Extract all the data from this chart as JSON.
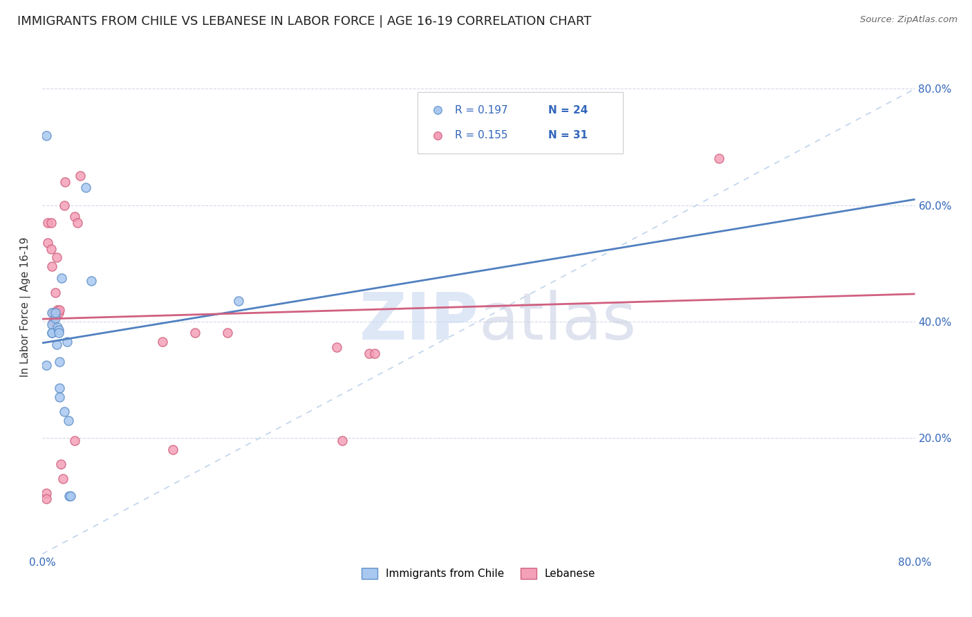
{
  "title": "IMMIGRANTS FROM CHILE VS LEBANESE IN LABOR FORCE | AGE 16-19 CORRELATION CHART",
  "source": "Source: ZipAtlas.com",
  "ylabel": "In Labor Force | Age 16-19",
  "xlim": [
    0.0,
    0.8
  ],
  "ylim": [
    0.0,
    0.85
  ],
  "xtick_labels": [
    "0.0%",
    "",
    "",
    "",
    "80.0%"
  ],
  "xtick_vals": [
    0.0,
    0.2,
    0.4,
    0.6,
    0.8
  ],
  "ytick_vals": [
    0.2,
    0.4,
    0.6,
    0.8
  ],
  "right_ytick_labels": [
    "20.0%",
    "40.0%",
    "60.0%",
    "80.0%"
  ],
  "chile_color": "#A8C8F0",
  "lebanese_color": "#F4A0B8",
  "chile_edge_color": "#6090C8",
  "lebanese_edge_color": "#D06080",
  "trend_chile_color": "#5080C0",
  "trend_lebanese_color": "#D06080",
  "ref_line_color": "#B0C8E8",
  "legend_r_chile": "R = 0.197",
  "legend_n_chile": "N = 24",
  "legend_r_lebanese": "R = 0.155",
  "legend_n_lebanese": "N = 31",
  "title_fontsize": 13,
  "axis_label_fontsize": 11,
  "tick_fontsize": 11,
  "marker_size": 90,
  "chile_x": [
    0.004,
    0.009,
    0.009,
    0.009,
    0.009,
    0.012,
    0.012,
    0.013,
    0.014,
    0.015,
    0.015,
    0.016,
    0.016,
    0.016,
    0.018,
    0.02,
    0.023,
    0.024,
    0.025,
    0.026,
    0.04,
    0.045,
    0.18,
    0.004
  ],
  "chile_y": [
    0.325,
    0.415,
    0.395,
    0.38,
    0.38,
    0.405,
    0.415,
    0.36,
    0.39,
    0.385,
    0.38,
    0.285,
    0.27,
    0.33,
    0.475,
    0.245,
    0.365,
    0.23,
    0.1,
    0.1,
    0.63,
    0.47,
    0.435,
    0.72
  ],
  "lebanese_x": [
    0.004,
    0.004,
    0.005,
    0.005,
    0.008,
    0.008,
    0.009,
    0.01,
    0.01,
    0.012,
    0.013,
    0.014,
    0.015,
    0.016,
    0.017,
    0.019,
    0.02,
    0.021,
    0.03,
    0.032,
    0.035,
    0.11,
    0.12,
    0.14,
    0.17,
    0.27,
    0.275,
    0.3,
    0.305,
    0.62,
    0.03
  ],
  "lebanese_y": [
    0.105,
    0.095,
    0.535,
    0.57,
    0.57,
    0.525,
    0.495,
    0.415,
    0.4,
    0.45,
    0.51,
    0.42,
    0.415,
    0.42,
    0.155,
    0.13,
    0.6,
    0.64,
    0.58,
    0.57,
    0.65,
    0.365,
    0.18,
    0.38,
    0.38,
    0.355,
    0.195,
    0.345,
    0.345,
    0.68,
    0.195
  ],
  "trend_chile_x0": 0.0,
  "trend_chile_x1": 0.8,
  "trend_lebanese_x0": 0.0,
  "trend_lebanese_x1": 0.8,
  "watermark_color_zip": "#C8D8F0",
  "watermark_color_atlas": "#C0C8E0"
}
